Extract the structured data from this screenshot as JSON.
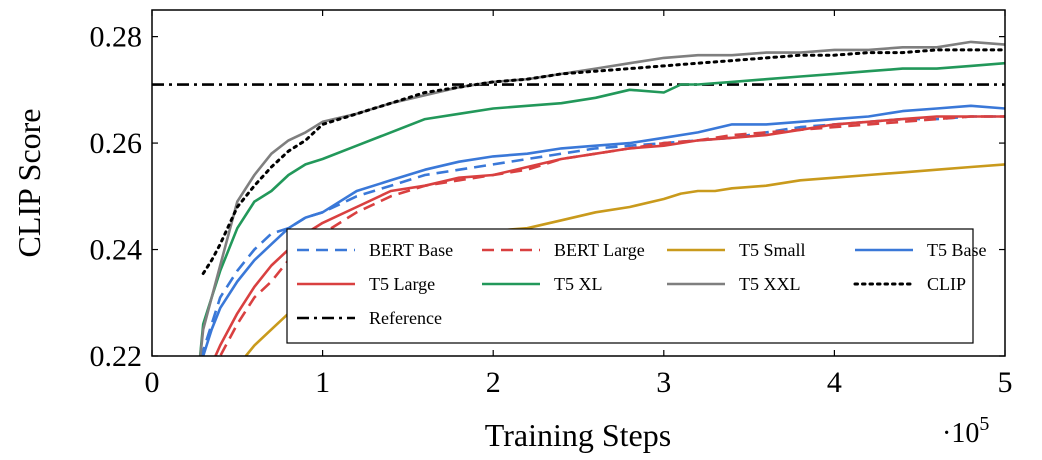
{
  "chart_data": {
    "type": "line",
    "title": "",
    "xlabel": "Training Steps",
    "ylabel": "CLIP Score",
    "x_multiplier_label": "·10",
    "x_multiplier_exponent": "5",
    "xlim": [
      0,
      5
    ],
    "ylim": [
      0.22,
      0.285
    ],
    "xticks": [
      {
        "value": 0,
        "label": "0"
      },
      {
        "value": 1,
        "label": "1"
      },
      {
        "value": 2,
        "label": "2"
      },
      {
        "value": 3,
        "label": "3"
      },
      {
        "value": 4,
        "label": "4"
      },
      {
        "value": 5,
        "label": "5"
      }
    ],
    "yticks": [
      {
        "value": 0.22,
        "label": "0.22"
      },
      {
        "value": 0.24,
        "label": "0.24"
      },
      {
        "value": 0.26,
        "label": "0.26"
      },
      {
        "value": 0.28,
        "label": "0.28"
      }
    ],
    "grid": false,
    "legend_position": "bottom-center",
    "reference": {
      "name": "Reference",
      "y": 0.271,
      "color": "#000000",
      "dash": "dashdot"
    },
    "series": [
      {
        "name": "BERT Base",
        "color": "#3a78d8",
        "dash": "dashed",
        "x": [
          0.27,
          0.3,
          0.35,
          0.4,
          0.5,
          0.6,
          0.7,
          0.8,
          0.9,
          1.0,
          1.2,
          1.4,
          1.6,
          1.8,
          2.0,
          2.2,
          2.4,
          2.6,
          2.8,
          3.0,
          3.2,
          3.4,
          3.6,
          3.8,
          4.0,
          4.2,
          4.4,
          4.6,
          4.8,
          5.0
        ],
        "y": [
          0.216,
          0.221,
          0.226,
          0.231,
          0.236,
          0.24,
          0.243,
          0.244,
          0.246,
          0.247,
          0.25,
          0.252,
          0.254,
          0.255,
          0.256,
          0.257,
          0.258,
          0.259,
          0.2595,
          0.26,
          0.2605,
          0.261,
          0.262,
          0.263,
          0.2635,
          0.264,
          0.2645,
          0.2645,
          0.265,
          0.265
        ]
      },
      {
        "name": "BERT Large",
        "color": "#d94040",
        "dash": "dashed",
        "x": [
          0.35,
          0.4,
          0.5,
          0.6,
          0.7,
          0.8,
          0.9,
          1.0,
          1.2,
          1.4,
          1.6,
          1.8,
          2.0,
          2.2,
          2.4,
          2.6,
          2.8,
          3.0,
          3.2,
          3.4,
          3.6,
          3.8,
          4.0,
          4.2,
          4.4,
          4.6,
          4.8,
          5.0
        ],
        "y": [
          0.217,
          0.22,
          0.226,
          0.231,
          0.234,
          0.238,
          0.241,
          0.243,
          0.247,
          0.25,
          0.252,
          0.253,
          0.254,
          0.255,
          0.257,
          0.258,
          0.259,
          0.26,
          0.2605,
          0.2615,
          0.262,
          0.2625,
          0.263,
          0.2635,
          0.264,
          0.2645,
          0.265,
          0.265
        ]
      },
      {
        "name": "T5 Small",
        "color": "#c99a1c",
        "dash": "solid",
        "x": [
          0.55,
          0.6,
          0.7,
          0.8,
          0.9,
          1.0,
          1.2,
          1.4,
          1.6,
          1.8,
          2.0,
          2.2,
          2.4,
          2.6,
          2.8,
          3.0,
          3.1,
          3.2,
          3.3,
          3.4,
          3.6,
          3.8,
          4.0,
          4.2,
          4.4,
          4.6,
          4.8,
          5.0
        ],
        "y": [
          0.22,
          0.222,
          0.225,
          0.228,
          0.231,
          0.233,
          0.236,
          0.238,
          0.24,
          0.242,
          0.2435,
          0.244,
          0.2455,
          0.247,
          0.248,
          0.2495,
          0.2505,
          0.251,
          0.251,
          0.2515,
          0.252,
          0.253,
          0.2535,
          0.254,
          0.2545,
          0.255,
          0.2555,
          0.256
        ]
      },
      {
        "name": "T5 Base",
        "color": "#3a78d8",
        "dash": "solid",
        "x": [
          0.27,
          0.3,
          0.35,
          0.4,
          0.5,
          0.6,
          0.7,
          0.8,
          0.9,
          1.0,
          1.2,
          1.4,
          1.6,
          1.8,
          2.0,
          2.2,
          2.4,
          2.6,
          2.8,
          3.0,
          3.2,
          3.4,
          3.6,
          3.8,
          4.0,
          4.2,
          4.4,
          4.6,
          4.8,
          5.0
        ],
        "y": [
          0.216,
          0.22,
          0.225,
          0.229,
          0.234,
          0.238,
          0.241,
          0.244,
          0.246,
          0.247,
          0.251,
          0.253,
          0.255,
          0.2565,
          0.2575,
          0.258,
          0.259,
          0.2595,
          0.26,
          0.261,
          0.262,
          0.2635,
          0.2635,
          0.264,
          0.2645,
          0.265,
          0.266,
          0.2665,
          0.267,
          0.2665
        ]
      },
      {
        "name": "T5 Large",
        "color": "#d94040",
        "dash": "solid",
        "x": [
          0.33,
          0.4,
          0.5,
          0.6,
          0.7,
          0.8,
          0.9,
          1.0,
          1.2,
          1.4,
          1.6,
          1.8,
          2.0,
          2.2,
          2.4,
          2.6,
          2.8,
          3.0,
          3.2,
          3.4,
          3.6,
          3.8,
          4.0,
          4.2,
          4.4,
          4.6,
          4.8,
          5.0
        ],
        "y": [
          0.217,
          0.222,
          0.228,
          0.233,
          0.237,
          0.24,
          0.243,
          0.245,
          0.248,
          0.251,
          0.252,
          0.2535,
          0.254,
          0.2555,
          0.257,
          0.258,
          0.259,
          0.2595,
          0.2605,
          0.261,
          0.2615,
          0.2625,
          0.2635,
          0.264,
          0.2645,
          0.265,
          0.265,
          0.265
        ]
      },
      {
        "name": "T5 XL",
        "color": "#22985a",
        "dash": "solid",
        "x": [
          0.27,
          0.3,
          0.35,
          0.4,
          0.5,
          0.6,
          0.7,
          0.8,
          0.9,
          1.0,
          1.2,
          1.4,
          1.6,
          1.8,
          2.0,
          2.2,
          2.4,
          2.6,
          2.8,
          3.0,
          3.1,
          3.2,
          3.4,
          3.6,
          3.8,
          4.0,
          4.2,
          4.4,
          4.6,
          4.8,
          5.0
        ],
        "y": [
          0.216,
          0.226,
          0.231,
          0.236,
          0.244,
          0.249,
          0.251,
          0.254,
          0.256,
          0.257,
          0.2595,
          0.262,
          0.2645,
          0.2655,
          0.2665,
          0.267,
          0.2675,
          0.2685,
          0.27,
          0.2695,
          0.271,
          0.271,
          0.2715,
          0.272,
          0.2725,
          0.273,
          0.2735,
          0.274,
          0.274,
          0.2745,
          0.275
        ]
      },
      {
        "name": "T5 XXL",
        "color": "#7f7f7f",
        "dash": "solid",
        "x": [
          0.27,
          0.3,
          0.35,
          0.4,
          0.5,
          0.6,
          0.7,
          0.8,
          0.9,
          1.0,
          1.2,
          1.4,
          1.6,
          1.8,
          2.0,
          2.2,
          2.4,
          2.6,
          2.8,
          3.0,
          3.2,
          3.4,
          3.6,
          3.8,
          4.0,
          4.2,
          4.4,
          4.6,
          4.8,
          5.0
        ],
        "y": [
          0.216,
          0.225,
          0.231,
          0.237,
          0.249,
          0.254,
          0.258,
          0.2605,
          0.262,
          0.264,
          0.2655,
          0.2675,
          0.269,
          0.2705,
          0.2715,
          0.272,
          0.273,
          0.274,
          0.275,
          0.276,
          0.2765,
          0.2765,
          0.277,
          0.277,
          0.2775,
          0.2775,
          0.278,
          0.278,
          0.279,
          0.2785
        ]
      },
      {
        "name": "CLIP",
        "color": "#000000",
        "dash": "dotted",
        "x": [
          0.3,
          0.35,
          0.4,
          0.5,
          0.6,
          0.7,
          0.8,
          0.9,
          1.0,
          1.2,
          1.4,
          1.6,
          1.8,
          2.0,
          2.2,
          2.4,
          2.6,
          2.8,
          3.0,
          3.2,
          3.4,
          3.6,
          3.8,
          4.0,
          4.2,
          4.4,
          4.6,
          4.8,
          5.0
        ],
        "y": [
          0.2355,
          0.238,
          0.241,
          0.248,
          0.252,
          0.2555,
          0.2585,
          0.2605,
          0.2635,
          0.2655,
          0.2675,
          0.2695,
          0.2705,
          0.2715,
          0.272,
          0.273,
          0.2735,
          0.274,
          0.2745,
          0.275,
          0.2755,
          0.276,
          0.2765,
          0.2765,
          0.277,
          0.277,
          0.2775,
          0.2775,
          0.2775
        ]
      }
    ],
    "legend_order": [
      "BERT Base",
      "BERT Large",
      "T5 Small",
      "T5 Base",
      "T5 Large",
      "T5 XL",
      "T5 XXL",
      "CLIP",
      "Reference"
    ]
  }
}
